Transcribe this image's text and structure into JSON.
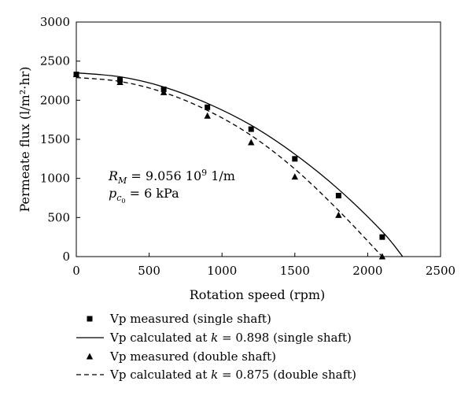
{
  "chart_data": {
    "type": "scatter",
    "xlabel": "Rotation speed (rpm)",
    "ylabel": "Permeate flux (l/m²·hr)",
    "xlim": [
      0,
      2500
    ],
    "ylim": [
      0,
      3000
    ],
    "xticks": [
      0,
      500,
      1000,
      1500,
      2000,
      2500
    ],
    "yticks": [
      0,
      500,
      1000,
      1500,
      2000,
      2500,
      3000
    ],
    "grid": false,
    "legend_placement": "bottom",
    "annotation": {
      "line1": "R_M = 9.056 10^9 1/m",
      "line2": "p_c0 = 6 kPa"
    },
    "series": [
      {
        "name": "Vp measured (single shaft)",
        "kind": "markers",
        "marker": "square",
        "x": [
          0,
          300,
          600,
          900,
          1200,
          1500,
          1800,
          2100
        ],
        "y": [
          2330,
          2260,
          2140,
          1910,
          1630,
          1250,
          780,
          250
        ]
      },
      {
        "name": "Vp calculated at k = 0.898 (single shaft)",
        "kind": "line",
        "dash": "solid",
        "x": [
          0,
          300,
          600,
          900,
          1200,
          1500,
          1800,
          2100,
          2240
        ],
        "y": [
          2350,
          2300,
          2170,
          1960,
          1680,
          1310,
          860,
          320,
          0
        ]
      },
      {
        "name": "Vp measured (double shaft)",
        "kind": "markers",
        "marker": "triangle",
        "x": [
          0,
          300,
          600,
          900,
          1200,
          1500,
          1800,
          2100
        ],
        "y": [
          2330,
          2230,
          2100,
          1800,
          1460,
          1020,
          530,
          0
        ]
      },
      {
        "name": "Vp calculated at k = 0.875 (double shaft)",
        "kind": "line",
        "dash": "dashed",
        "x": [
          0,
          300,
          600,
          900,
          1200,
          1500,
          1800,
          2100
        ],
        "y": [
          2290,
          2240,
          2100,
          1870,
          1550,
          1120,
          590,
          0
        ]
      }
    ]
  }
}
